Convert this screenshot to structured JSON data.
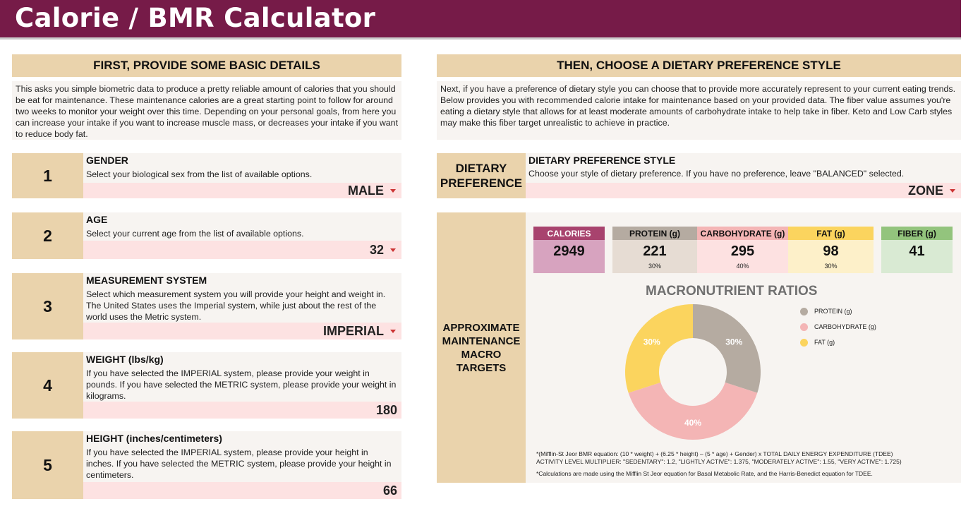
{
  "header": {
    "title": "Calorie / BMR Calculator"
  },
  "left": {
    "section_title": "FIRST, PROVIDE SOME BASIC DETAILS",
    "description": "This asks you simple biometric data to produce a pretty reliable amount of calories that you should be eat for maintenance. These maintenance calories are a great starting point to follow for around two weeks to monitor your weight over this time. Depending on your personal goals, from here you can increase your intake if you want to increase muscle mass, or decreases your intake if you want to reduce body fat.",
    "steps": [
      {
        "num": "1",
        "title": "GENDER",
        "desc": "Select your biological sex from the list of available options.",
        "value": "MALE"
      },
      {
        "num": "2",
        "title": "AGE",
        "desc": "Select your current age from the list of available options.",
        "value": "32"
      },
      {
        "num": "3",
        "title": "MEASUREMENT SYSTEM",
        "desc": "Select which measurement system you will provide your height and weight in. The United States uses the Imperial system, while just about the rest of the world uses the Metric system.",
        "value": "IMPERIAL"
      },
      {
        "num": "4",
        "title": "WEIGHT (lbs/kg)",
        "desc": "If you have selected the IMPERIAL system, please provide your weight in pounds. If you have selected the METRIC system, please provide your weight in kilograms.",
        "value": "180"
      },
      {
        "num": "5",
        "title": "HEIGHT (inches/centimeters)",
        "desc": "If you have selected the IMPERIAL system, please provide your height in inches. If you have selected the METRIC system, please provide your height in centimeters.",
        "value": "66"
      }
    ]
  },
  "right": {
    "section_title": "THEN, CHOOSE A DIETARY PREFERENCE STYLE",
    "description": "Next, if you have a preference of dietary style you can choose that to provide more accurately represent to your current eating trends. Below provides you with recommended calorie intake for maintenance based on your provided data. The fiber value assumes you're eating a dietary style that allows for at least moderate amounts of carbohydrate intake to help take in fiber. Keto and Low Carb styles may make this fiber target unrealistic to achieve in practice.",
    "diet": {
      "label": "DIETARY PREFERENCE",
      "title": "DIETARY PREFERENCE STYLE",
      "desc": "Choose your style of dietary preference. If you have no preference, leave \"BALANCED\" selected.",
      "value": "ZONE"
    },
    "macro": {
      "label": "APPROXIMATE MAINTENANCE MACRO TARGETS",
      "stats": {
        "calories": {
          "label": "CALORIES",
          "value": "2949",
          "pct": ""
        },
        "protein": {
          "label": "PROTEIN (g)",
          "value": "221",
          "pct": "30%"
        },
        "carbs": {
          "label": "CARBOHYDRATE (g)",
          "value": "295",
          "pct": "40%"
        },
        "fat": {
          "label": "FAT (g)",
          "value": "98",
          "pct": "30%"
        },
        "fiber": {
          "label": "FIBER (g)",
          "value": "41",
          "pct": ""
        }
      },
      "chart_title": "MACRONUTRIENT RATIOS",
      "footnote1": "*(Mifflin-St Jeor BMR equation: (10 * weight) + (6.25 * height) – (5 * age) + Gender)  x  TOTAL DAILY ENERGY EXPENDITURE (TDEE)",
      "footnote2": "ACTIVITY LEVEL MULTIPLIER: \"SEDENTARY\": 1.2, \"LIGHTLY ACTIVE\": 1.375, \"MODERATELY ACTIVE\": 1.55, \"VERY ACTIVE\": 1.725)",
      "footnote3": "*Calculations are made using the Mifflin St Jeor equation for Basal Metabolic Rate, and the Harris-Benedict equation for TDEE."
    }
  },
  "chart_data": {
    "type": "pie",
    "title": "MACRONUTRIENT RATIOS",
    "categories": [
      "PROTEIN (g)",
      "CARBOHYDRATE (g)",
      "FAT (g)"
    ],
    "values": [
      30,
      40,
      30
    ],
    "labels": [
      "30%",
      "40%",
      "30%"
    ],
    "colors": [
      "#b5aba1",
      "#f4b5b5",
      "#fbd45e"
    ],
    "legend": "right",
    "donut": true
  },
  "colors": {
    "header": "#761b48",
    "section": "#ead3ac",
    "panel": "#f7f4f1",
    "input": "#fde2e2",
    "calories_head": "#a8436e",
    "calories_body": "#d7a3bf",
    "protein_head": "#b5aba1",
    "protein_body": "#e6dcd3",
    "carbs_head": "#f4b5b5",
    "carbs_body": "#fde1e1",
    "fat_head": "#fbd45e",
    "fat_body": "#fdf0c9",
    "fiber_head": "#93c47d",
    "fiber_body": "#d9ead3"
  }
}
